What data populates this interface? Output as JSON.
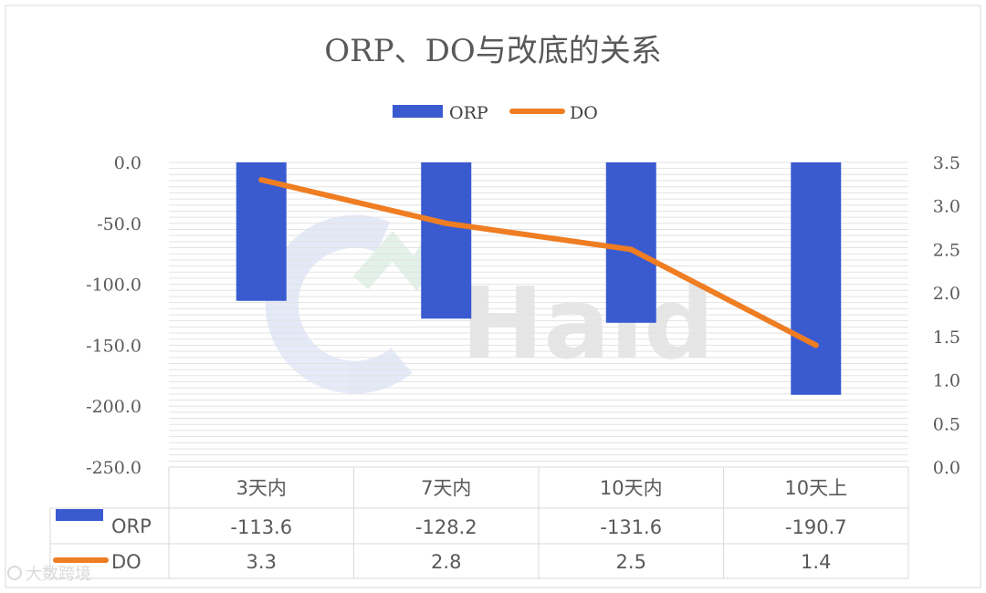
{
  "chart_data": {
    "type": "bar",
    "title": "ORP、DO与改底的关系",
    "categories": [
      "3天内",
      "7天内",
      "10天内",
      "10天上"
    ],
    "series": [
      {
        "name": "ORP",
        "type": "bar",
        "axis": "left",
        "values": [
          -113.6,
          -128.2,
          -131.6,
          -190.7
        ],
        "color": "#3a5bd0"
      },
      {
        "name": "DO",
        "type": "line",
        "axis": "right",
        "values": [
          3.3,
          2.8,
          2.5,
          1.4
        ],
        "color": "#ef7d22"
      }
    ],
    "y_left": {
      "min": -250,
      "max": 0,
      "ticks": [
        "0.0",
        "-50.0",
        "-100.0",
        "-150.0",
        "-200.0",
        "-250.0"
      ]
    },
    "y_right": {
      "min": 0,
      "max": 3.5,
      "ticks": [
        "3.5",
        "3.0",
        "2.5",
        "2.0",
        "1.5",
        "1.0",
        "0.5",
        "0.0"
      ]
    },
    "legend": {
      "position": "top",
      "items": [
        "ORP",
        "DO"
      ]
    },
    "data_table": {
      "rows": [
        {
          "label": "ORP",
          "values": [
            "-113.6",
            "-128.2",
            "-131.6",
            "-190.7"
          ]
        },
        {
          "label": "DO",
          "values": [
            "3.3",
            "2.8",
            "2.5",
            "1.4"
          ]
        }
      ]
    },
    "grid": true
  },
  "watermark": {
    "logo_text": "Haid",
    "caption": "大数跨境"
  }
}
